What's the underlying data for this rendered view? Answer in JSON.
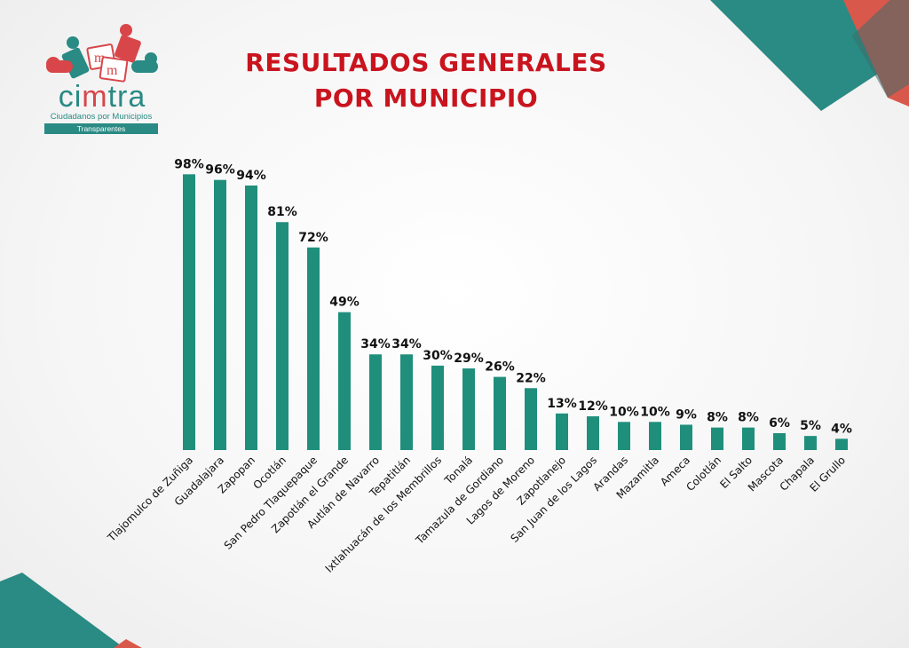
{
  "title_line1": "RESULTADOS GENERALES",
  "title_line2": "POR MUNICIPIO",
  "logo": {
    "name_part1": "ci",
    "name_part2": "m",
    "name_part3": "tra",
    "tagline": "Ciudadanos por Municipios",
    "band": "Transparentes"
  },
  "colors": {
    "bar": "#1f8f7c",
    "title": "#c9141e",
    "teal": "#2a8a84",
    "coral": "#e1574b"
  },
  "chart_data": {
    "type": "bar",
    "title": "RESULTADOS GENERALES POR MUNICIPIO",
    "categories": [
      "Tlajomulco de Zuñiga",
      "Guadalajara",
      "Zapopan",
      "Ocotlán",
      "San Pedro Tlaquepaque",
      "Zapotlán el Grande",
      "Autlán de Navarro",
      "Tepatitlán",
      "Ixtlahuacán de los Membrillos",
      "Tonalá",
      "Tamazula de Gordiano",
      "Lagos de Moreno",
      "Zapotlanejo",
      "San Juan de los Lagos",
      "Arandas",
      "Mazamitla",
      "Ameca",
      "Colotlán",
      "El Salto",
      "Mascota",
      "Chapala",
      "El Grullo"
    ],
    "values": [
      98,
      96,
      94,
      81,
      72,
      49,
      34,
      34,
      30,
      29,
      26,
      22,
      13,
      12,
      10,
      10,
      9,
      8,
      8,
      6,
      5,
      4
    ],
    "labels": [
      "98%",
      "96%",
      "94%",
      "81%",
      "72%",
      "49%",
      "34%",
      "34%",
      "30%",
      "29%",
      "26%",
      "22%",
      "13%",
      "12%",
      "10%",
      "10%",
      "9%",
      "8%",
      "8%",
      "6%",
      "5%",
      "4%"
    ],
    "ylim": [
      0,
      100
    ],
    "grid": false,
    "legend": "none"
  }
}
